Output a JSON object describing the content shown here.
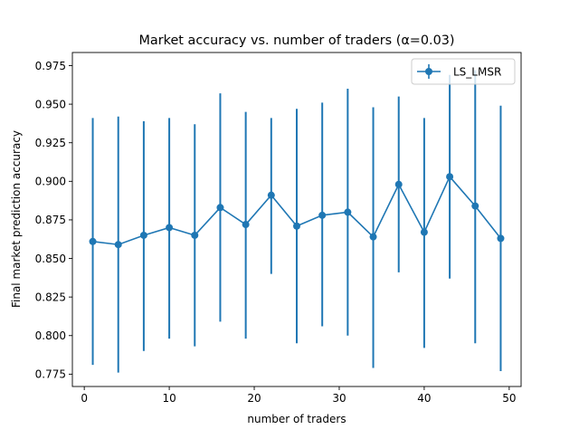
{
  "chart_data": {
    "type": "line",
    "title": "Market accuracy vs. number of traders (α=0.03)",
    "xlabel": "number of traders",
    "ylabel": "Final market prediction accuracy",
    "xlim": [
      -1.4,
      51.4
    ],
    "ylim": [
      0.767,
      0.9835
    ],
    "xticks": [
      0,
      10,
      20,
      30,
      40,
      50
    ],
    "xtick_labels": [
      "0",
      "10",
      "20",
      "30",
      "40",
      "50"
    ],
    "yticks": [
      0.775,
      0.8,
      0.825,
      0.85,
      0.875,
      0.9,
      0.925,
      0.95,
      0.975
    ],
    "ytick_labels": [
      "0.775",
      "0.800",
      "0.825",
      "0.850",
      "0.875",
      "0.900",
      "0.925",
      "0.950",
      "0.975"
    ],
    "grid": false,
    "legend_position": "top-right",
    "series": [
      {
        "name": "LS_LMSR",
        "color": "#1f77b4",
        "marker": "circle",
        "error_bars": true,
        "x": [
          1,
          4,
          7,
          10,
          13,
          16,
          19,
          22,
          25,
          28,
          31,
          34,
          37,
          40,
          43,
          46,
          49
        ],
        "y": [
          0.861,
          0.859,
          0.865,
          0.87,
          0.865,
          0.883,
          0.872,
          0.891,
          0.871,
          0.878,
          0.88,
          0.864,
          0.898,
          0.867,
          0.903,
          0.884,
          0.863
        ],
        "yerr_low": [
          0.781,
          0.776,
          0.79,
          0.798,
          0.793,
          0.809,
          0.798,
          0.84,
          0.795,
          0.806,
          0.8,
          0.779,
          0.841,
          0.792,
          0.837,
          0.795,
          0.777
        ],
        "yerr_high": [
          0.941,
          0.942,
          0.939,
          0.941,
          0.937,
          0.957,
          0.945,
          0.941,
          0.947,
          0.951,
          0.96,
          0.948,
          0.955,
          0.941,
          0.969,
          0.972,
          0.949
        ]
      }
    ]
  }
}
